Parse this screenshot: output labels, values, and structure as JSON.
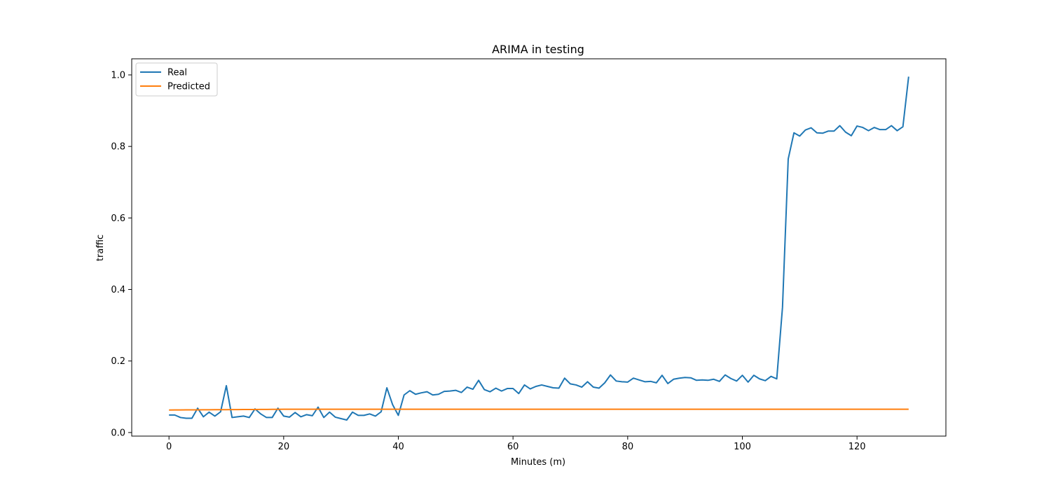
{
  "chart_data": {
    "type": "line",
    "title": "ARIMA in testing",
    "xlabel": "Minutes (m)",
    "ylabel": "traffic",
    "xlim": [
      -6.5,
      135.5
    ],
    "ylim": [
      -0.01,
      1.045
    ],
    "xticks": [
      0,
      20,
      40,
      60,
      80,
      100,
      120
    ],
    "yticks": [
      0.0,
      0.2,
      0.4,
      0.6,
      0.8,
      1.0
    ],
    "xtick_labels": [
      "0",
      "20",
      "40",
      "60",
      "80",
      "100",
      "120"
    ],
    "ytick_labels": [
      "0.0",
      "0.2",
      "0.4",
      "0.6",
      "0.8",
      "1.0"
    ],
    "grid": false,
    "legend": "upper-left",
    "series": [
      {
        "name": "Real",
        "color": "#1f77b4",
        "x_start": 0,
        "x_step": 1,
        "values": [
          0.049,
          0.049,
          0.042,
          0.04,
          0.04,
          0.068,
          0.044,
          0.057,
          0.046,
          0.058,
          0.131,
          0.042,
          0.044,
          0.046,
          0.042,
          0.066,
          0.052,
          0.042,
          0.042,
          0.068,
          0.046,
          0.043,
          0.056,
          0.044,
          0.05,
          0.047,
          0.071,
          0.042,
          0.057,
          0.043,
          0.039,
          0.035,
          0.057,
          0.048,
          0.048,
          0.052,
          0.046,
          0.058,
          0.125,
          0.078,
          0.048,
          0.105,
          0.117,
          0.107,
          0.111,
          0.114,
          0.105,
          0.107,
          0.115,
          0.116,
          0.118,
          0.112,
          0.127,
          0.121,
          0.146,
          0.12,
          0.114,
          0.124,
          0.116,
          0.123,
          0.123,
          0.109,
          0.133,
          0.122,
          0.129,
          0.133,
          0.129,
          0.125,
          0.124,
          0.152,
          0.136,
          0.133,
          0.127,
          0.142,
          0.127,
          0.124,
          0.139,
          0.161,
          0.144,
          0.142,
          0.141,
          0.152,
          0.147,
          0.142,
          0.143,
          0.139,
          0.16,
          0.137,
          0.149,
          0.152,
          0.154,
          0.153,
          0.146,
          0.147,
          0.146,
          0.149,
          0.143,
          0.161,
          0.151,
          0.144,
          0.16,
          0.141,
          0.16,
          0.15,
          0.145,
          0.157,
          0.15,
          0.35,
          0.765,
          0.838,
          0.829,
          0.846,
          0.852,
          0.838,
          0.837,
          0.843,
          0.843,
          0.858,
          0.84,
          0.83,
          0.857,
          0.853,
          0.844,
          0.853,
          0.847,
          0.847,
          0.858,
          0.844,
          0.855,
          0.995
        ]
      },
      {
        "name": "Predicted",
        "color": "#ff7f0e",
        "x_start": 0,
        "x_step": 1,
        "values": [
          0.063,
          0.0631,
          0.0632,
          0.0633,
          0.0634,
          0.0635,
          0.0636,
          0.0637,
          0.0638,
          0.0639,
          0.064,
          0.0641,
          0.0642,
          0.0643,
          0.0644,
          0.0645,
          0.0646,
          0.0647,
          0.0648,
          0.0649,
          0.065,
          0.065,
          0.065,
          0.065,
          0.065,
          0.065,
          0.065,
          0.065,
          0.065,
          0.065,
          0.065,
          0.065,
          0.065,
          0.065,
          0.065,
          0.065,
          0.065,
          0.065,
          0.065,
          0.065,
          0.065,
          0.065,
          0.065,
          0.065,
          0.065,
          0.065,
          0.065,
          0.065,
          0.065,
          0.065,
          0.065,
          0.065,
          0.065,
          0.065,
          0.065,
          0.065,
          0.065,
          0.065,
          0.065,
          0.065,
          0.065,
          0.065,
          0.065,
          0.065,
          0.065,
          0.065,
          0.065,
          0.065,
          0.065,
          0.065,
          0.065,
          0.065,
          0.065,
          0.065,
          0.065,
          0.065,
          0.065,
          0.065,
          0.065,
          0.065,
          0.065,
          0.065,
          0.065,
          0.065,
          0.065,
          0.065,
          0.065,
          0.065,
          0.065,
          0.065,
          0.065,
          0.065,
          0.065,
          0.065,
          0.065,
          0.065,
          0.065,
          0.065,
          0.065,
          0.065,
          0.065,
          0.065,
          0.065,
          0.065,
          0.065,
          0.065,
          0.065,
          0.065,
          0.065,
          0.065,
          0.065,
          0.065,
          0.065,
          0.065,
          0.065,
          0.065,
          0.065,
          0.065,
          0.065,
          0.065,
          0.065,
          0.065,
          0.065,
          0.065,
          0.065,
          0.065,
          0.065,
          0.065,
          0.065,
          0.065
        ]
      }
    ]
  }
}
